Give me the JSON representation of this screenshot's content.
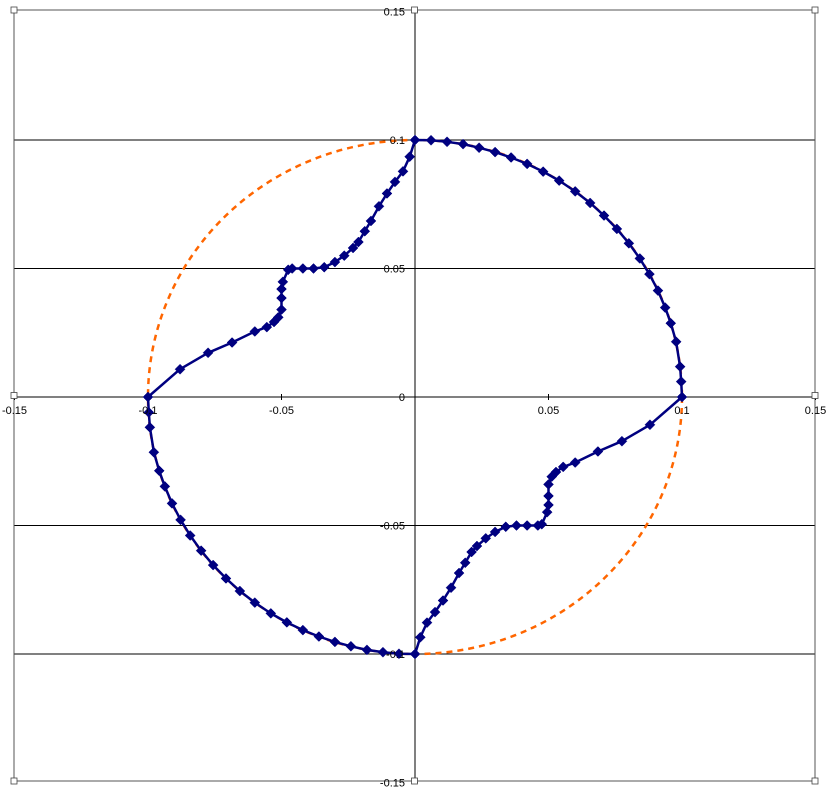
{
  "chart_data": {
    "type": "scatter",
    "title": "",
    "xlabel": "",
    "ylabel": "",
    "xlim": [
      -0.15,
      0.15
    ],
    "ylim": [
      -0.15,
      0.15
    ],
    "x_ticks": [
      -0.15,
      -0.1,
      -0.05,
      0,
      0.05,
      0.1,
      0.15
    ],
    "y_ticks": [
      -0.15,
      -0.1,
      -0.05,
      0,
      0.05,
      0.1,
      0.15
    ],
    "x_tick_labels": [
      "-0.15",
      "-0.1",
      "-0.05",
      "0",
      "0.05",
      "0.1",
      "0.15"
    ],
    "y_tick_labels": [
      "-0.15",
      "-0.1",
      "-0.05",
      "0",
      "0.05",
      "0.1",
      "0.15"
    ],
    "grid": "horizontal",
    "legend": "none",
    "colors": {
      "series_main": "#000080",
      "series_circle": "#ff6600",
      "grid": "#000000"
    },
    "series": [
      {
        "style": "line-with-diamond-markers",
        "color": "#000080",
        "points": [
          [
            0,
            0.1
          ],
          [
            0.006,
            0.0999
          ],
          [
            0.012,
            0.0993
          ],
          [
            0.018,
            0.0984
          ],
          [
            0.024,
            0.097
          ],
          [
            0.03,
            0.0953
          ],
          [
            0.036,
            0.0932
          ],
          [
            0.042,
            0.0907
          ],
          [
            0.048,
            0.0877
          ],
          [
            0.054,
            0.0842
          ],
          [
            0.06,
            0.08
          ],
          [
            0.0656,
            0.0755
          ],
          [
            0.0708,
            0.0706
          ],
          [
            0.0756,
            0.0654
          ],
          [
            0.0801,
            0.0598
          ],
          [
            0.0842,
            0.0539
          ],
          [
            0.0878,
            0.0478
          ],
          [
            0.091,
            0.0414
          ],
          [
            0.0937,
            0.0348
          ],
          [
            0.0958,
            0.0287
          ],
          [
            0.0978,
            0.0215
          ],
          [
            0.0993,
            0.0118
          ],
          [
            0.0997,
            0.006
          ],
          [
            0.1,
            0
          ],
          [
            0.088,
            -0.0108
          ],
          [
            0.0775,
            -0.0172
          ],
          [
            0.0685,
            -0.0212
          ],
          [
            0.06,
            -0.0255
          ],
          [
            0.0555,
            -0.0272
          ],
          [
            0.0528,
            -0.0292
          ],
          [
            0.0512,
            -0.031
          ],
          [
            0.05,
            -0.034
          ],
          [
            0.05,
            -0.0385
          ],
          [
            0.05,
            -0.042
          ],
          [
            0.0495,
            -0.0448
          ],
          [
            0.0475,
            -0.0495
          ],
          [
            0.046,
            -0.05
          ],
          [
            0.042,
            -0.05
          ],
          [
            0.038,
            -0.05
          ],
          [
            0.034,
            -0.0505
          ],
          [
            0.03,
            -0.0525
          ],
          [
            0.0265,
            -0.055
          ],
          [
            0.0232,
            -0.058
          ],
          [
            0.0212,
            -0.0603
          ],
          [
            0.0188,
            -0.0645
          ],
          [
            0.0165,
            -0.0685
          ],
          [
            0.0135,
            -0.0742
          ],
          [
            0.0105,
            -0.0792
          ],
          [
            0.0075,
            -0.0837
          ],
          [
            0.0045,
            -0.0878
          ],
          [
            0.002,
            -0.0935
          ],
          [
            0,
            -0.1
          ],
          [
            -0.006,
            -0.0999
          ],
          [
            -0.012,
            -0.0993
          ],
          [
            -0.018,
            -0.0984
          ],
          [
            -0.024,
            -0.097
          ],
          [
            -0.03,
            -0.0953
          ],
          [
            -0.036,
            -0.0932
          ],
          [
            -0.042,
            -0.0907
          ],
          [
            -0.048,
            -0.0877
          ],
          [
            -0.054,
            -0.0842
          ],
          [
            -0.06,
            -0.08
          ],
          [
            -0.0656,
            -0.0755
          ],
          [
            -0.0708,
            -0.0706
          ],
          [
            -0.0756,
            -0.0654
          ],
          [
            -0.0801,
            -0.0598
          ],
          [
            -0.0842,
            -0.0539
          ],
          [
            -0.0878,
            -0.0478
          ],
          [
            -0.091,
            -0.0414
          ],
          [
            -0.0937,
            -0.0348
          ],
          [
            -0.0958,
            -0.0287
          ],
          [
            -0.0978,
            -0.0215
          ],
          [
            -0.0993,
            -0.0118
          ],
          [
            -0.0997,
            -0.006
          ],
          [
            -0.1,
            0
          ],
          [
            -0.088,
            0.0108
          ],
          [
            -0.0775,
            0.0172
          ],
          [
            -0.0685,
            0.0212
          ],
          [
            -0.06,
            0.0255
          ],
          [
            -0.0555,
            0.0272
          ],
          [
            -0.0528,
            0.0292
          ],
          [
            -0.0512,
            0.031
          ],
          [
            -0.05,
            0.034
          ],
          [
            -0.05,
            0.0385
          ],
          [
            -0.05,
            0.042
          ],
          [
            -0.0495,
            0.0448
          ],
          [
            -0.0475,
            0.0495
          ],
          [
            -0.046,
            0.05
          ],
          [
            -0.042,
            0.05
          ],
          [
            -0.038,
            0.05
          ],
          [
            -0.034,
            0.0505
          ],
          [
            -0.03,
            0.0525
          ],
          [
            -0.0265,
            0.055
          ],
          [
            -0.0232,
            0.058
          ],
          [
            -0.0212,
            0.0603
          ],
          [
            -0.0188,
            0.0645
          ],
          [
            -0.0165,
            0.0685
          ],
          [
            -0.0135,
            0.0742
          ],
          [
            -0.0105,
            0.0792
          ],
          [
            -0.0075,
            0.0837
          ],
          [
            -0.0045,
            0.0878
          ],
          [
            -0.002,
            0.0935
          ],
          [
            0,
            0.1
          ]
        ]
      },
      {
        "style": "dashed-circle",
        "color": "#ff6600",
        "shape": "circle",
        "center": [
          0,
          0
        ],
        "radius": 0.1
      }
    ]
  }
}
